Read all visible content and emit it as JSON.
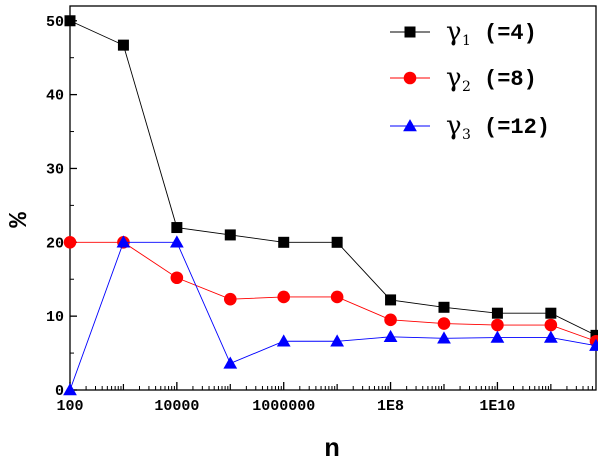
{
  "chart_data": {
    "type": "line",
    "x_scale": "log",
    "xlabel": "n",
    "ylabel": "%",
    "xlim": [
      100,
      700000000000
    ],
    "ylim": [
      0,
      52
    ],
    "x_ticks": [
      {
        "value": 100,
        "label": "100"
      },
      {
        "value": 10000,
        "label": "10000"
      },
      {
        "value": 1000000,
        "label": "1000000"
      },
      {
        "value": 100000000,
        "label": "1E8"
      },
      {
        "value": 10000000000,
        "label": "1E10"
      }
    ],
    "y_ticks": [
      {
        "value": 0,
        "label": "0"
      },
      {
        "value": 10,
        "label": "10"
      },
      {
        "value": 20,
        "label": "20"
      },
      {
        "value": 30,
        "label": "30"
      },
      {
        "value": 40,
        "label": "40"
      },
      {
        "value": 50,
        "label": "50"
      }
    ],
    "x": [
      100,
      1000,
      10000,
      100000,
      1000000,
      10000000,
      100000000,
      1000000000,
      10000000000,
      100000000000,
      700000000000
    ],
    "series": [
      {
        "symbol": "γ",
        "sub": "1",
        "value_label": "(=4)",
        "marker": "square",
        "color": "#000000",
        "line_color": "#000000",
        "values": [
          50,
          46.7,
          22,
          21,
          20,
          20,
          12.2,
          11.2,
          10.4,
          10.4,
          7.4
        ]
      },
      {
        "symbol": "γ",
        "sub": "2",
        "value_label": "(=8)",
        "marker": "circle",
        "color": "#ff0000",
        "line_color": "#ff0000",
        "values": [
          20,
          20,
          15.2,
          12.3,
          12.6,
          12.6,
          9.5,
          9.0,
          8.8,
          8.8,
          6.6
        ]
      },
      {
        "symbol": "γ",
        "sub": "3",
        "value_label": "(=12)",
        "marker": "triangle",
        "color": "#0000ff",
        "line_color": "#0000ff",
        "values": [
          0,
          20,
          20,
          3.6,
          6.6,
          6.6,
          7.2,
          7.0,
          7.1,
          7.1,
          6.0
        ]
      }
    ],
    "legend_position": "top-right",
    "grid": false
  }
}
